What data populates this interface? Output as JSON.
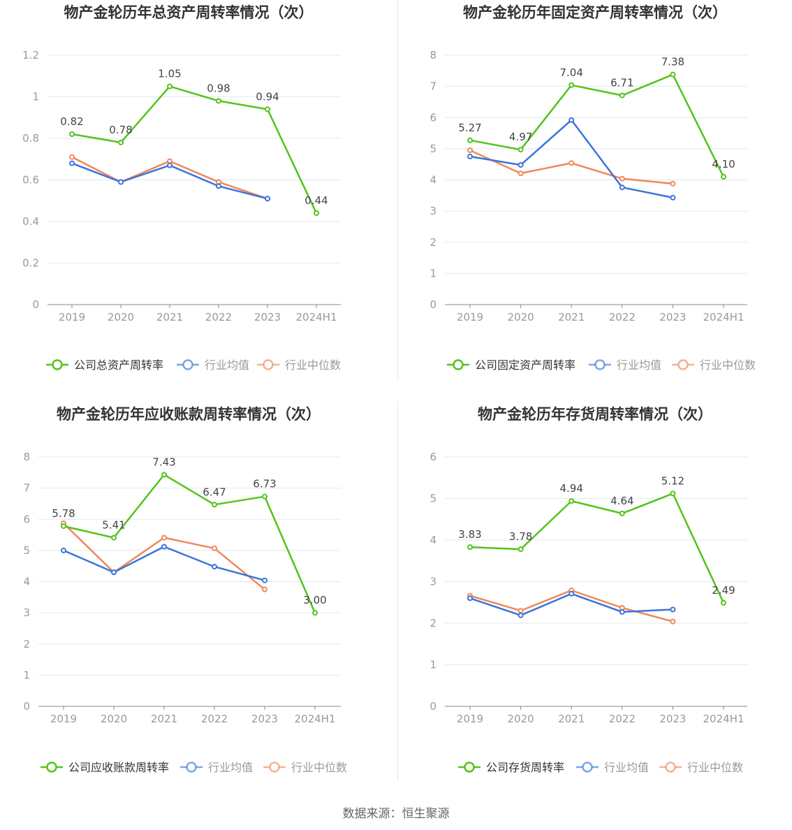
{
  "source_text": "数据来源：恒生聚源",
  "colors": {
    "company": "#52c41a",
    "industry_avg": "#3b74db",
    "industry_median": "#f0875a",
    "axis_text": "#999999",
    "value_text": "#444444",
    "grid": "#e3e7f0",
    "title": "#333333"
  },
  "chart_data": [
    {
      "type": "line",
      "title": "物产金轮历年总资产周转率情况（次）",
      "categories": [
        "2019",
        "2020",
        "2021",
        "2022",
        "2023",
        "2024H1"
      ],
      "ylim": [
        0,
        1.2
      ],
      "yticks": [
        "0",
        "0.2",
        "0.4",
        "0.6",
        "0.8",
        "1",
        "1.2"
      ],
      "series": [
        {
          "name": "公司总资产周转率",
          "values": [
            0.82,
            0.78,
            1.05,
            0.98,
            0.94,
            0.44
          ],
          "labels": [
            "0.82",
            "0.78",
            "1.05",
            "0.98",
            "0.94",
            "0.44"
          ]
        },
        {
          "name": "行业均值",
          "values": [
            0.68,
            0.59,
            0.67,
            0.57,
            0.51,
            null
          ]
        },
        {
          "name": "行业中位数",
          "values": [
            0.71,
            0.59,
            0.69,
            0.59,
            0.51,
            null
          ]
        }
      ]
    },
    {
      "type": "line",
      "title": "物产金轮历年固定资产周转率情况（次）",
      "categories": [
        "2019",
        "2020",
        "2021",
        "2022",
        "2023",
        "2024H1"
      ],
      "ylim": [
        0,
        8
      ],
      "yticks": [
        "0",
        "1",
        "2",
        "3",
        "4",
        "5",
        "6",
        "7",
        "8"
      ],
      "series": [
        {
          "name": "公司固定资产周转率",
          "values": [
            5.27,
            4.97,
            7.04,
            6.71,
            7.38,
            4.1
          ],
          "labels": [
            "5.27",
            "4.97",
            "7.04",
            "6.71",
            "7.38",
            "4.10"
          ]
        },
        {
          "name": "行业均值",
          "values": [
            4.75,
            4.48,
            5.92,
            3.76,
            3.43,
            null
          ]
        },
        {
          "name": "行业中位数",
          "values": [
            4.95,
            4.21,
            4.54,
            4.04,
            3.88,
            null
          ]
        }
      ]
    },
    {
      "type": "line",
      "title": "物产金轮历年应收账款周转率情况（次）",
      "categories": [
        "2019",
        "2020",
        "2021",
        "2022",
        "2023",
        "2024H1"
      ],
      "ylim": [
        0,
        8
      ],
      "yticks": [
        "0",
        "1",
        "2",
        "3",
        "4",
        "5",
        "6",
        "7",
        "8"
      ],
      "series": [
        {
          "name": "公司应收账款周转率",
          "values": [
            5.78,
            5.41,
            7.43,
            6.47,
            6.73,
            3.0
          ],
          "labels": [
            "5.78",
            "5.41",
            "7.43",
            "6.47",
            "6.73",
            "3.00"
          ]
        },
        {
          "name": "行业均值",
          "values": [
            5.0,
            4.3,
            5.12,
            4.48,
            4.04,
            null
          ]
        },
        {
          "name": "行业中位数",
          "values": [
            5.87,
            4.3,
            5.41,
            5.07,
            3.75,
            null
          ]
        }
      ]
    },
    {
      "type": "line",
      "title": "物产金轮历年存货周转率情况（次）",
      "categories": [
        "2019",
        "2020",
        "2021",
        "2022",
        "2023",
        "2024H1"
      ],
      "ylim": [
        0,
        6
      ],
      "yticks": [
        "0",
        "1",
        "2",
        "3",
        "4",
        "5",
        "6"
      ],
      "series": [
        {
          "name": "公司存货周转率",
          "values": [
            3.83,
            3.78,
            4.94,
            4.64,
            5.12,
            2.49
          ],
          "labels": [
            "3.83",
            "3.78",
            "4.94",
            "4.64",
            "5.12",
            "2.49"
          ]
        },
        {
          "name": "行业均值",
          "values": [
            2.6,
            2.19,
            2.71,
            2.27,
            2.33,
            null
          ]
        },
        {
          "name": "行业中位数",
          "values": [
            2.66,
            2.3,
            2.79,
            2.37,
            2.04,
            null
          ]
        }
      ]
    }
  ]
}
